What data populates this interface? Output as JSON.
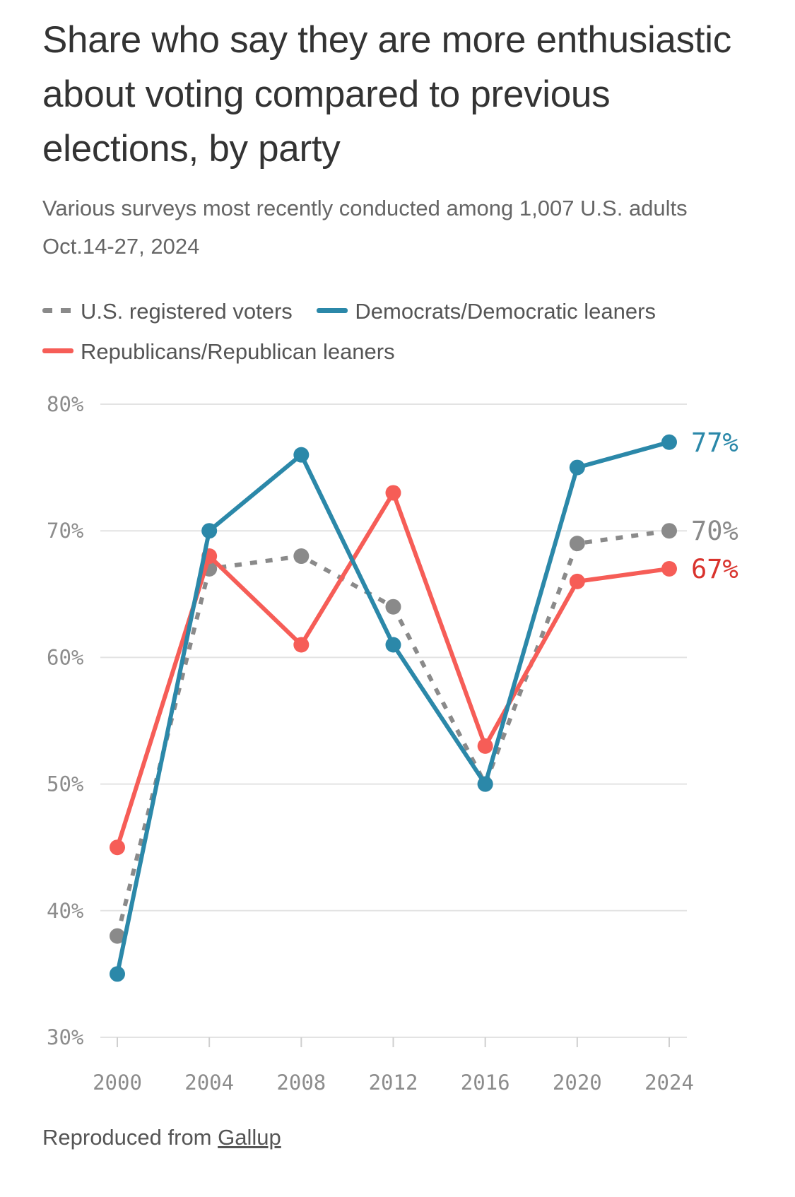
{
  "title": "Share who say they are more enthusiastic about voting compared to previous elections, by party",
  "subtitle": "Various surveys most recently conducted among 1,007 U.S. adults Oct.14-27, 2024",
  "legend": {
    "registered": "U.S. registered voters",
    "democrats": "Democrats/Democratic leaners",
    "republicans": "Republicans/Republican leaners"
  },
  "footer": {
    "prefix": "Reproduced from ",
    "source": "Gallup"
  },
  "colors": {
    "registered": "#8a8a8a",
    "democrats": "#2b88a9",
    "republicans": "#f65d57",
    "republicans_label": "#d9332d",
    "grid": "#e3e3e3"
  },
  "chart_data": {
    "type": "line",
    "x": [
      2000,
      2004,
      2008,
      2012,
      2016,
      2020,
      2024
    ],
    "x_tick_labels": [
      "2000",
      "2004",
      "2008",
      "2012",
      "2016",
      "2020",
      "2024"
    ],
    "y_ticks": [
      30,
      40,
      50,
      60,
      70,
      80
    ],
    "y_tick_labels": [
      "30%",
      "40%",
      "50%",
      "60%",
      "70%",
      "80%"
    ],
    "ylim": [
      30,
      80
    ],
    "grid": true,
    "legend_position": "top",
    "series": [
      {
        "key": "registered",
        "name": "U.S. registered voters",
        "style": "dashed",
        "values": [
          38,
          67,
          68,
          64,
          50,
          69,
          70
        ],
        "end_label": "70%"
      },
      {
        "key": "republicans",
        "name": "Republicans/Republican leaners",
        "style": "solid",
        "values": [
          45,
          68,
          61,
          73,
          53,
          66,
          67
        ],
        "end_label": "67%"
      },
      {
        "key": "democrats",
        "name": "Democrats/Democratic leaners",
        "style": "solid",
        "values": [
          35,
          70,
          76,
          61,
          50,
          75,
          77
        ],
        "end_label": "77%"
      }
    ]
  }
}
